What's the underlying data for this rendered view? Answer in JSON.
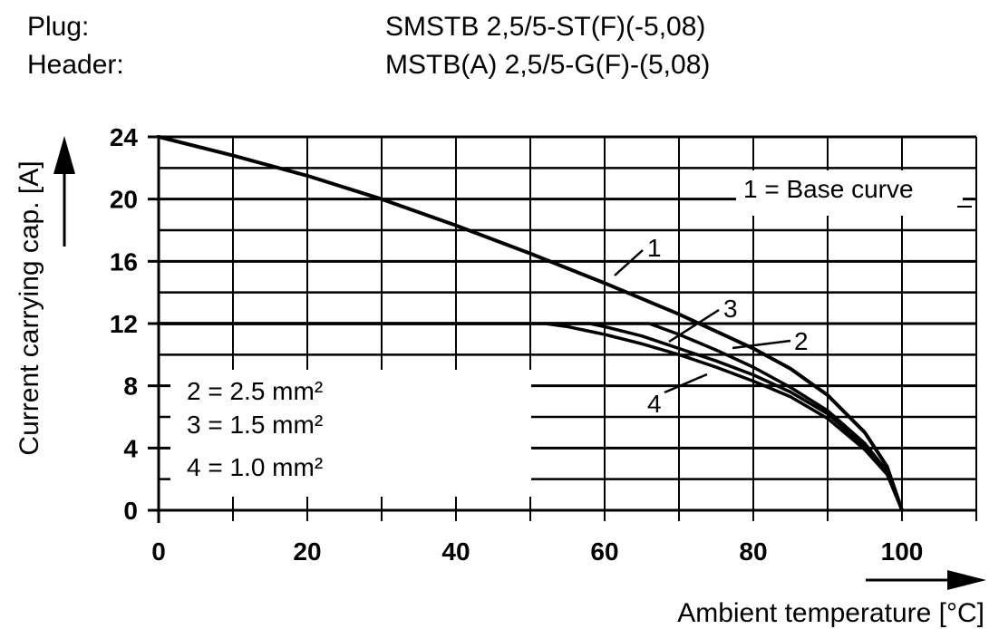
{
  "header": {
    "plug_label": "Plug:",
    "plug_value": "SMSTB 2,5/5-ST(F)(-5,08)",
    "header_label": "Header:",
    "header_value": "MSTB(A) 2,5/5-G(F)-(5,08)"
  },
  "chart_data": {
    "type": "line",
    "xlabel": "Ambient temperature [°C]",
    "ylabel": "Current carrying cap. [A]",
    "xlim": [
      0,
      110
    ],
    "ylim": [
      0,
      24
    ],
    "x_ticks": [
      "0",
      "20",
      "40",
      "60",
      "80",
      "100"
    ],
    "y_ticks": [
      "0",
      "4",
      "8",
      "12",
      "16",
      "20",
      "24"
    ],
    "grid": true,
    "legend_top": "1 = Base curve",
    "legend_bottom": [
      "2 = 2.5 mm²",
      "3 = 1.5 mm²",
      "4 = 1.0 mm²"
    ],
    "series": [
      {
        "name": "1",
        "x": [
          0,
          10,
          20,
          30,
          40,
          50,
          60,
          70,
          80,
          85,
          90,
          95,
          98,
          100
        ],
        "y": [
          24,
          22.8,
          21.5,
          20,
          18.3,
          16.5,
          14.6,
          12.6,
          10.4,
          9.1,
          7.4,
          5,
          2.8,
          0
        ]
      },
      {
        "name": "2",
        "x": [
          0,
          20,
          40,
          60,
          66,
          70,
          75,
          80,
          85,
          90,
          95,
          98,
          100
        ],
        "y": [
          12,
          12,
          12,
          12,
          12,
          11.3,
          10.3,
          9.2,
          7.9,
          6.4,
          4.3,
          2.5,
          0
        ]
      },
      {
        "name": "3",
        "x": [
          0,
          20,
          40,
          55,
          58,
          60,
          65,
          70,
          75,
          80,
          85,
          90,
          95,
          98,
          100
        ],
        "y": [
          12,
          12,
          12,
          12,
          12,
          11.8,
          11.2,
          10.4,
          9.6,
          8.7,
          7.6,
          6.2,
          4.1,
          2.4,
          0
        ]
      },
      {
        "name": "4",
        "x": [
          52,
          55,
          60,
          65,
          70,
          75,
          80,
          85,
          90,
          95,
          98,
          100
        ],
        "y": [
          12,
          11.8,
          11.3,
          10.7,
          10.0,
          9.2,
          8.3,
          7.3,
          5.9,
          3.9,
          2.3,
          0
        ]
      }
    ],
    "curve_labels": [
      "1",
      "2",
      "3",
      "4"
    ]
  }
}
